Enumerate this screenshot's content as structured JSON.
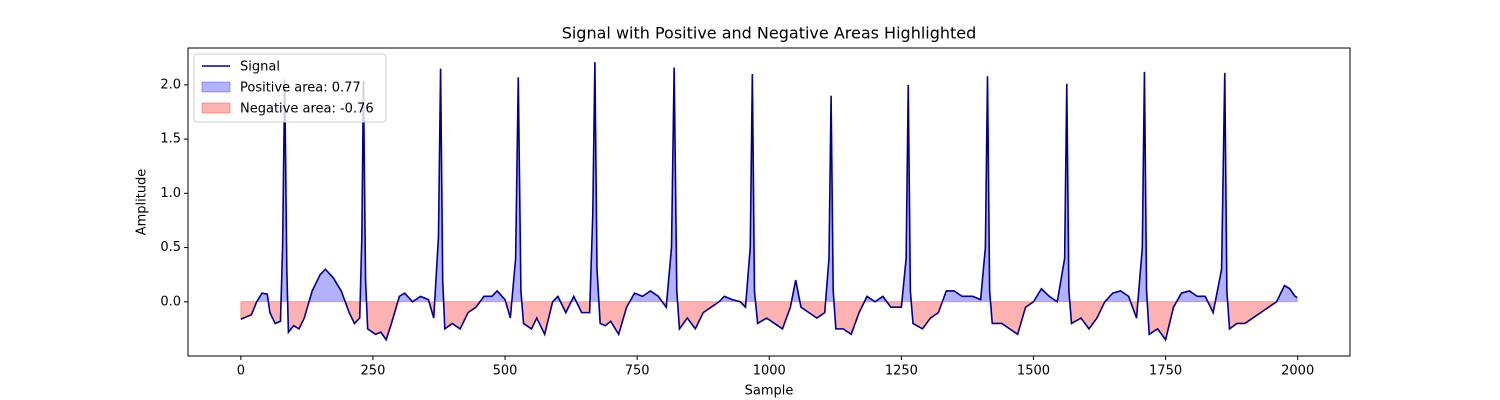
{
  "chart_data": {
    "type": "line",
    "title": "Signal with Positive and Negative Areas Highlighted",
    "xlabel": "Sample",
    "ylabel": "Amplitude",
    "x": [
      0,
      10,
      20,
      30,
      40,
      50,
      55,
      65,
      75,
      79,
      83,
      87,
      90,
      100,
      110,
      120,
      135,
      150,
      160,
      175,
      190,
      205,
      215,
      225,
      229,
      232,
      236,
      240,
      255,
      265,
      275,
      285,
      300,
      310,
      325,
      340,
      355,
      365,
      374,
      378,
      382,
      386,
      400,
      415,
      430,
      445,
      460,
      475,
      485,
      500,
      510,
      520,
      525,
      530,
      535,
      550,
      560,
      575,
      590,
      600,
      615,
      630,
      645,
      660,
      666,
      670,
      674,
      680,
      690,
      700,
      715,
      730,
      745,
      760,
      775,
      790,
      805,
      815,
      820,
      825,
      830,
      845,
      860,
      875,
      890,
      905,
      915,
      930,
      945,
      955,
      964,
      968,
      972,
      978,
      995,
      1010,
      1025,
      1040,
      1050,
      1060,
      1075,
      1090,
      1105,
      1113,
      1117,
      1121,
      1126,
      1140,
      1155,
      1170,
      1185,
      1200,
      1215,
      1230,
      1250,
      1259,
      1263,
      1267,
      1272,
      1290,
      1305,
      1320,
      1335,
      1350,
      1365,
      1385,
      1400,
      1409,
      1413,
      1417,
      1422,
      1440,
      1455,
      1470,
      1485,
      1500,
      1515,
      1530,
      1545,
      1559,
      1563,
      1567,
      1572,
      1590,
      1605,
      1620,
      1635,
      1650,
      1665,
      1680,
      1695,
      1706,
      1710,
      1714,
      1719,
      1735,
      1750,
      1765,
      1780,
      1795,
      1810,
      1825,
      1840,
      1856,
      1862,
      1866,
      1871,
      1885,
      1900,
      1915,
      1930,
      1945,
      1960,
      1975,
      1985,
      1995,
      1999
    ],
    "series": [
      {
        "name": "Signal",
        "color": "#00008b",
        "values": [
          -0.16,
          -0.14,
          -0.12,
          0.0,
          0.08,
          0.07,
          -0.1,
          -0.2,
          -0.18,
          0.5,
          2.05,
          0.3,
          -0.28,
          -0.22,
          -0.25,
          -0.15,
          0.1,
          0.25,
          0.3,
          0.22,
          0.1,
          -0.1,
          -0.2,
          -0.15,
          0.6,
          2.04,
          0.2,
          -0.25,
          -0.3,
          -0.28,
          -0.35,
          -0.2,
          0.05,
          0.08,
          0.0,
          0.05,
          0.02,
          -0.15,
          0.6,
          2.15,
          0.2,
          -0.25,
          -0.2,
          -0.25,
          -0.1,
          -0.05,
          0.05,
          0.05,
          0.1,
          0.02,
          -0.15,
          0.4,
          2.07,
          0.1,
          -0.2,
          -0.25,
          -0.15,
          -0.3,
          0.0,
          0.05,
          -0.1,
          0.05,
          -0.1,
          -0.1,
          0.8,
          2.21,
          0.3,
          -0.2,
          -0.22,
          -0.18,
          -0.3,
          -0.05,
          0.08,
          0.05,
          0.1,
          0.05,
          -0.05,
          0.5,
          2.16,
          0.1,
          -0.25,
          -0.15,
          -0.25,
          -0.1,
          -0.05,
          0.0,
          0.05,
          0.02,
          0.0,
          -0.05,
          0.5,
          2.1,
          0.1,
          -0.2,
          -0.15,
          -0.2,
          -0.25,
          -0.05,
          0.2,
          -0.05,
          -0.1,
          -0.15,
          -0.1,
          0.4,
          1.9,
          0.1,
          -0.25,
          -0.25,
          -0.3,
          -0.1,
          0.05,
          0.0,
          0.05,
          -0.05,
          -0.05,
          0.4,
          2.0,
          0.1,
          -0.2,
          -0.25,
          -0.15,
          -0.1,
          0.1,
          0.1,
          0.05,
          0.05,
          0.02,
          0.5,
          2.08,
          0.1,
          -0.2,
          -0.2,
          -0.25,
          -0.3,
          -0.05,
          0.0,
          0.12,
          0.05,
          0.0,
          0.4,
          2.01,
          0.1,
          -0.2,
          -0.15,
          -0.25,
          -0.15,
          0.0,
          0.08,
          0.1,
          0.05,
          -0.15,
          0.5,
          2.12,
          0.1,
          -0.3,
          -0.25,
          -0.35,
          -0.05,
          0.08,
          0.1,
          0.05,
          0.05,
          -0.1,
          0.3,
          2.11,
          0.1,
          -0.25,
          -0.2,
          -0.2,
          -0.15,
          -0.1,
          -0.05,
          0.0,
          0.15,
          0.12,
          0.05,
          0.04
        ]
      }
    ],
    "fills": [
      {
        "name": "Positive area: 0.77",
        "color": "#0000ff"
      },
      {
        "name": "Negative area: -0.76",
        "color": "#ff0000"
      }
    ],
    "xlim": [
      -100,
      2099
    ],
    "ylim": [
      -0.5,
      2.34
    ],
    "xticks": [
      0,
      250,
      500,
      750,
      1000,
      1250,
      1500,
      1750,
      2000
    ],
    "yticks": [
      {
        "value": 0,
        "label": "0.0"
      },
      {
        "value": 0.5,
        "label": "0.5"
      },
      {
        "value": 1,
        "label": "1.0"
      },
      {
        "value": 1.5,
        "label": "1.5"
      },
      {
        "value": 2,
        "label": "2.0"
      }
    ],
    "legend": "upper left"
  }
}
